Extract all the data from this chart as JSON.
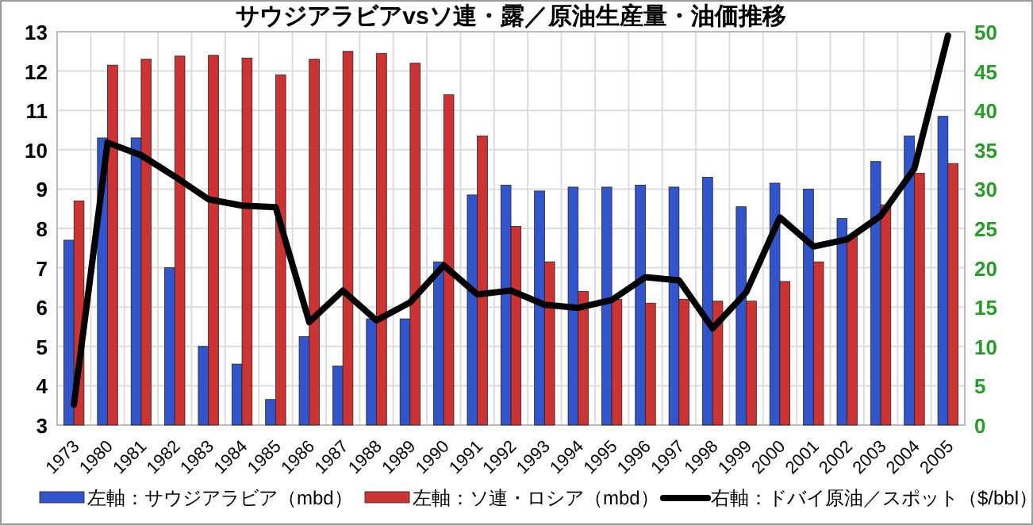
{
  "chart_data": {
    "type": "bar",
    "title": "サウジアラビアvsソ連・露／原油生産量・油価推移",
    "categories": [
      "1973",
      "1980",
      "1981",
      "1982",
      "1983",
      "1984",
      "1985",
      "1986",
      "1987",
      "1988",
      "1989",
      "1990",
      "1991",
      "1992",
      "1993",
      "1994",
      "1995",
      "1996",
      "1997",
      "1998",
      "1999",
      "2000",
      "2001",
      "2002",
      "2003",
      "2004",
      "2005"
    ],
    "series": [
      {
        "name": "左軸：サウジアラビア（mbd）",
        "color": "#3355cc",
        "values": [
          7.7,
          10.3,
          10.3,
          7.0,
          5.0,
          4.55,
          3.65,
          5.25,
          4.5,
          5.7,
          5.7,
          7.15,
          8.85,
          9.1,
          8.95,
          9.05,
          9.05,
          9.1,
          9.05,
          9.3,
          8.55,
          9.15,
          9.0,
          8.25,
          9.7,
          10.35,
          10.85
        ]
      },
      {
        "name": "左軸：ソ連・ロシア（mbd）",
        "color": "#cc3333",
        "values": [
          8.7,
          12.15,
          12.3,
          12.38,
          12.4,
          12.33,
          11.9,
          12.3,
          12.5,
          12.45,
          12.2,
          11.4,
          10.35,
          8.05,
          7.15,
          6.4,
          6.2,
          6.1,
          6.2,
          6.15,
          6.15,
          6.65,
          7.15,
          7.8,
          8.6,
          9.4,
          9.65
        ]
      },
      {
        "name": "右軸：ドバイ原油／スポット（$/bbl）",
        "type": "line",
        "axis": "y2",
        "color": "#000000",
        "values": [
          2.6,
          35.9,
          34.3,
          31.6,
          28.7,
          27.9,
          27.7,
          13.1,
          17.1,
          13.3,
          15.6,
          20.3,
          16.6,
          17.1,
          15.3,
          14.9,
          15.9,
          18.8,
          18.4,
          12.3,
          16.9,
          26.4,
          22.7,
          23.6,
          26.6,
          32.6,
          49.5
        ]
      }
    ],
    "ylim": [
      3,
      13
    ],
    "yticks": [
      3,
      4,
      5,
      6,
      7,
      8,
      9,
      10,
      11,
      12,
      13
    ],
    "y2lim": [
      0,
      50
    ],
    "y2ticks": [
      0,
      5,
      10,
      15,
      20,
      25,
      30,
      35,
      40,
      45,
      50
    ],
    "grid": true,
    "legend": "bottom"
  }
}
